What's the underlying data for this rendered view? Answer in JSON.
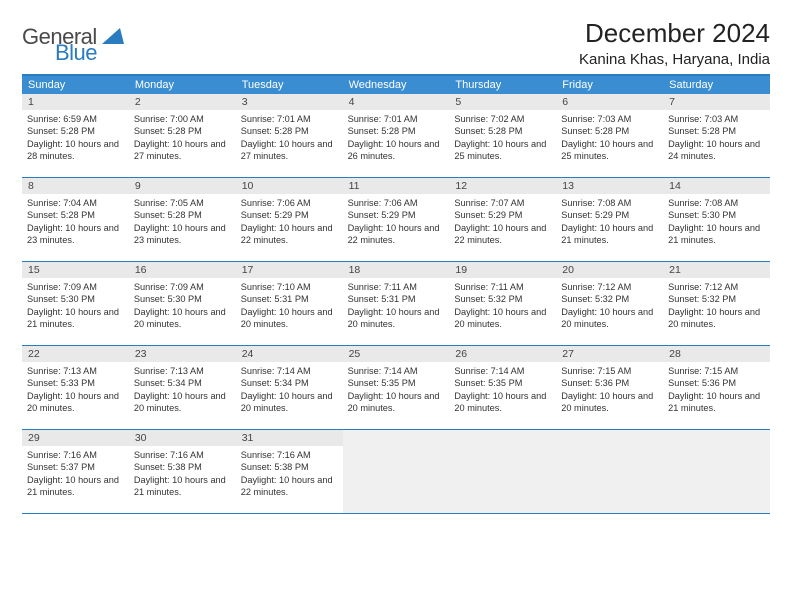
{
  "logo": {
    "part1": "General",
    "part2": "Blue"
  },
  "title": "December 2024",
  "location": "Kanina Khas, Haryana, India",
  "colors": {
    "header_bg": "#3a8dd0",
    "border": "#2b7bbf",
    "daynum_bg": "#e9e9e9",
    "logo_blue": "#2b7bbf",
    "logo_gray": "#4a4a4a"
  },
  "weekdays": [
    "Sunday",
    "Monday",
    "Tuesday",
    "Wednesday",
    "Thursday",
    "Friday",
    "Saturday"
  ],
  "grid_columns": 7,
  "days": [
    {
      "n": 1,
      "sr": "6:59 AM",
      "ss": "5:28 PM",
      "dl": "10 hours and 28 minutes."
    },
    {
      "n": 2,
      "sr": "7:00 AM",
      "ss": "5:28 PM",
      "dl": "10 hours and 27 minutes."
    },
    {
      "n": 3,
      "sr": "7:01 AM",
      "ss": "5:28 PM",
      "dl": "10 hours and 27 minutes."
    },
    {
      "n": 4,
      "sr": "7:01 AM",
      "ss": "5:28 PM",
      "dl": "10 hours and 26 minutes."
    },
    {
      "n": 5,
      "sr": "7:02 AM",
      "ss": "5:28 PM",
      "dl": "10 hours and 25 minutes."
    },
    {
      "n": 6,
      "sr": "7:03 AM",
      "ss": "5:28 PM",
      "dl": "10 hours and 25 minutes."
    },
    {
      "n": 7,
      "sr": "7:03 AM",
      "ss": "5:28 PM",
      "dl": "10 hours and 24 minutes."
    },
    {
      "n": 8,
      "sr": "7:04 AM",
      "ss": "5:28 PM",
      "dl": "10 hours and 23 minutes."
    },
    {
      "n": 9,
      "sr": "7:05 AM",
      "ss": "5:28 PM",
      "dl": "10 hours and 23 minutes."
    },
    {
      "n": 10,
      "sr": "7:06 AM",
      "ss": "5:29 PM",
      "dl": "10 hours and 22 minutes."
    },
    {
      "n": 11,
      "sr": "7:06 AM",
      "ss": "5:29 PM",
      "dl": "10 hours and 22 minutes."
    },
    {
      "n": 12,
      "sr": "7:07 AM",
      "ss": "5:29 PM",
      "dl": "10 hours and 22 minutes."
    },
    {
      "n": 13,
      "sr": "7:08 AM",
      "ss": "5:29 PM",
      "dl": "10 hours and 21 minutes."
    },
    {
      "n": 14,
      "sr": "7:08 AM",
      "ss": "5:30 PM",
      "dl": "10 hours and 21 minutes."
    },
    {
      "n": 15,
      "sr": "7:09 AM",
      "ss": "5:30 PM",
      "dl": "10 hours and 21 minutes."
    },
    {
      "n": 16,
      "sr": "7:09 AM",
      "ss": "5:30 PM",
      "dl": "10 hours and 20 minutes."
    },
    {
      "n": 17,
      "sr": "7:10 AM",
      "ss": "5:31 PM",
      "dl": "10 hours and 20 minutes."
    },
    {
      "n": 18,
      "sr": "7:11 AM",
      "ss": "5:31 PM",
      "dl": "10 hours and 20 minutes."
    },
    {
      "n": 19,
      "sr": "7:11 AM",
      "ss": "5:32 PM",
      "dl": "10 hours and 20 minutes."
    },
    {
      "n": 20,
      "sr": "7:12 AM",
      "ss": "5:32 PM",
      "dl": "10 hours and 20 minutes."
    },
    {
      "n": 21,
      "sr": "7:12 AM",
      "ss": "5:32 PM",
      "dl": "10 hours and 20 minutes."
    },
    {
      "n": 22,
      "sr": "7:13 AM",
      "ss": "5:33 PM",
      "dl": "10 hours and 20 minutes."
    },
    {
      "n": 23,
      "sr": "7:13 AM",
      "ss": "5:34 PM",
      "dl": "10 hours and 20 minutes."
    },
    {
      "n": 24,
      "sr": "7:14 AM",
      "ss": "5:34 PM",
      "dl": "10 hours and 20 minutes."
    },
    {
      "n": 25,
      "sr": "7:14 AM",
      "ss": "5:35 PM",
      "dl": "10 hours and 20 minutes."
    },
    {
      "n": 26,
      "sr": "7:14 AM",
      "ss": "5:35 PM",
      "dl": "10 hours and 20 minutes."
    },
    {
      "n": 27,
      "sr": "7:15 AM",
      "ss": "5:36 PM",
      "dl": "10 hours and 20 minutes."
    },
    {
      "n": 28,
      "sr": "7:15 AM",
      "ss": "5:36 PM",
      "dl": "10 hours and 21 minutes."
    },
    {
      "n": 29,
      "sr": "7:16 AM",
      "ss": "5:37 PM",
      "dl": "10 hours and 21 minutes."
    },
    {
      "n": 30,
      "sr": "7:16 AM",
      "ss": "5:38 PM",
      "dl": "10 hours and 21 minutes."
    },
    {
      "n": 31,
      "sr": "7:16 AM",
      "ss": "5:38 PM",
      "dl": "10 hours and 22 minutes."
    }
  ],
  "labels": {
    "sunrise": "Sunrise:",
    "sunset": "Sunset:",
    "daylight": "Daylight:"
  },
  "trailing_empty": 4,
  "table_type": "calendar"
}
